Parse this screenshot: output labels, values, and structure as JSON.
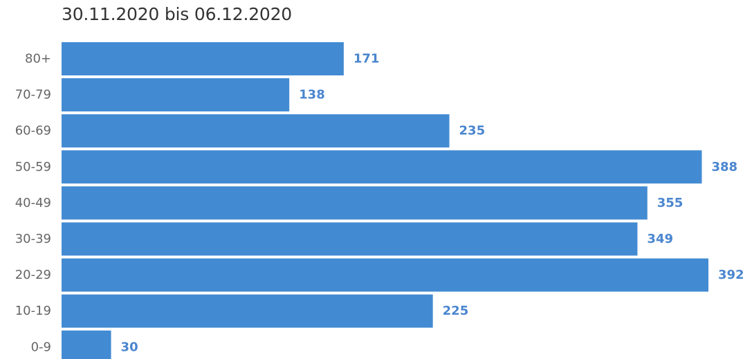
{
  "chart_data": {
    "type": "bar",
    "orientation": "horizontal",
    "title": "30.11.2020 bis 06.12.2020",
    "categories": [
      "80+",
      "70-79",
      "60-69",
      "50-59",
      "40-49",
      "30-39",
      "20-29",
      "10-19",
      "0-9"
    ],
    "values": [
      171,
      138,
      235,
      388,
      355,
      349,
      392,
      225,
      30
    ],
    "xlim": [
      0,
      392
    ],
    "grid": false,
    "legend": "none",
    "bar_color": "#428BD2",
    "value_label_color": "#4A86CF"
  }
}
